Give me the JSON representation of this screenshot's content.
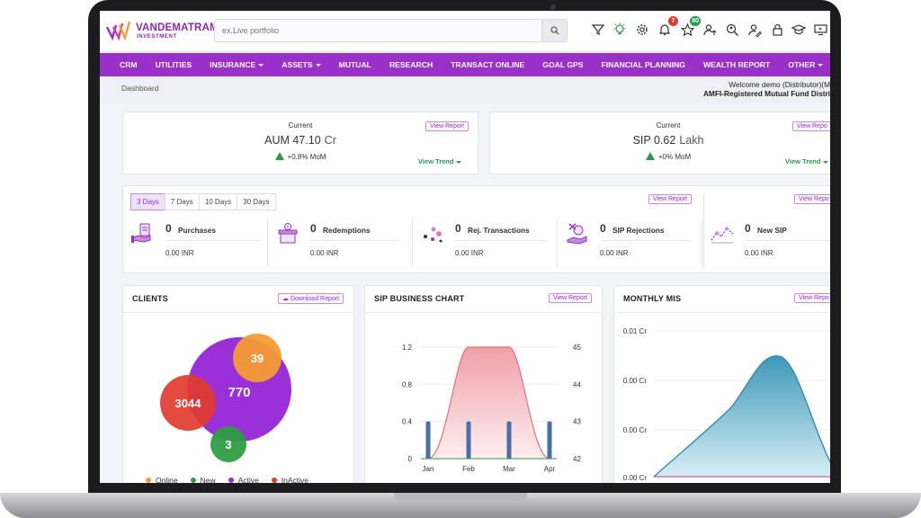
{
  "logo": {
    "name": "VANDEMATRAM",
    "sub": "INVESTMENT"
  },
  "search": {
    "placeholder": "ex.Live portfolio"
  },
  "badges": {
    "notifications": "7",
    "favorites": "80"
  },
  "nav": [
    {
      "label": "CRM",
      "dropdown": false
    },
    {
      "label": "UTILITIES",
      "dropdown": false
    },
    {
      "label": "INSURANCE",
      "dropdown": true
    },
    {
      "label": "ASSETS",
      "dropdown": true
    },
    {
      "label": "MUTUAL",
      "dropdown": false
    },
    {
      "label": "RESEARCH",
      "dropdown": false
    },
    {
      "label": "TRANSACT ONLINE",
      "dropdown": false
    },
    {
      "label": "GOAL GPS",
      "dropdown": false
    },
    {
      "label": "FINANCIAL PLANNING",
      "dropdown": false
    },
    {
      "label": "WEALTH REPORT",
      "dropdown": false
    },
    {
      "label": "OTHER",
      "dropdown": true
    }
  ],
  "breadcrumb": "Dashboard",
  "welcome": {
    "line1": "Welcome demo (Distributor)(M",
    "line2": "AMFI-Registered Mutual Fund Distri"
  },
  "aum": {
    "label": "Current",
    "prefix": "AUM",
    "value": "47.10",
    "unit": "Cr",
    "change": "+0.8% MoM",
    "report": "View Report",
    "trend": "View Trend"
  },
  "sip": {
    "label": "Current",
    "prefix": "SIP",
    "value": "0.62",
    "unit": "Lakh",
    "change": "+0% MoM",
    "report": "View Repo",
    "trend": "View Trend"
  },
  "transactions": {
    "days": [
      "3 Days",
      "7 Days",
      "10 Days",
      "30 Days"
    ],
    "active_day": "3 Days",
    "report": "View Report",
    "report2": "View Repo",
    "stats": [
      {
        "count": "0",
        "label": "Purchases",
        "amount": "0.00 INR",
        "icon": "purchase-icon"
      },
      {
        "count": "0",
        "label": "Redemptions",
        "amount": "0.00 INR",
        "icon": "redemption-icon"
      },
      {
        "count": "0",
        "label": "Rej. Transactions",
        "amount": "0.00 INR",
        "icon": "rejected-transaction-icon"
      },
      {
        "count": "0",
        "label": "SIP Rejections",
        "amount": "0.00 INR",
        "icon": "sip-rejection-icon"
      },
      {
        "count": "0",
        "label": "New SIP",
        "amount": "0.00 INR",
        "icon": "new-sip-icon"
      }
    ]
  },
  "clients": {
    "title": "CLIENTS",
    "download": "Download Report",
    "bubbles": [
      {
        "label": "Online",
        "value": "39",
        "color": "#f39c34"
      },
      {
        "label": "New",
        "value": "3",
        "color": "#2e9e44"
      },
      {
        "label": "Active",
        "value": "770",
        "color": "#9b30d9"
      },
      {
        "label": "InActive",
        "value": "3044",
        "color": "#e03c2c"
      }
    ]
  },
  "sip_chart": {
    "title": "SIP BUSINESS CHART",
    "report": "View Report"
  },
  "monthly": {
    "title": "MONTHLY MIS",
    "report": "View Repo"
  },
  "chart_data": [
    {
      "type": "bar",
      "title": "SIP BUSINESS CHART",
      "categories": [
        "Jan",
        "Feb",
        "Mar",
        "Apr"
      ],
      "left_axis": {
        "ticks": [
          "0",
          "0.4",
          "0.8",
          "1.2"
        ],
        "ylim": [
          0,
          1.2
        ]
      },
      "right_axis": {
        "ticks": [
          "42",
          "43",
          "44",
          "45"
        ],
        "ylim": [
          42,
          45
        ]
      },
      "series": [
        {
          "type": "bar",
          "values": [
            0.4,
            0.4,
            0.4,
            0.4
          ],
          "color": "#4a6fa8",
          "axis": "left"
        },
        {
          "type": "area",
          "values": [
            42,
            45,
            45,
            42
          ],
          "color": "#e0707a",
          "axis": "right"
        }
      ]
    },
    {
      "type": "area",
      "title": "MONTHLY MIS",
      "y_ticks": [
        "0.01 Cr",
        "0.00 Cr",
        "0.00 Cr",
        "0.00 Cr"
      ],
      "series": [
        {
          "type": "area",
          "color": "#4aa3c2"
        }
      ]
    }
  ]
}
